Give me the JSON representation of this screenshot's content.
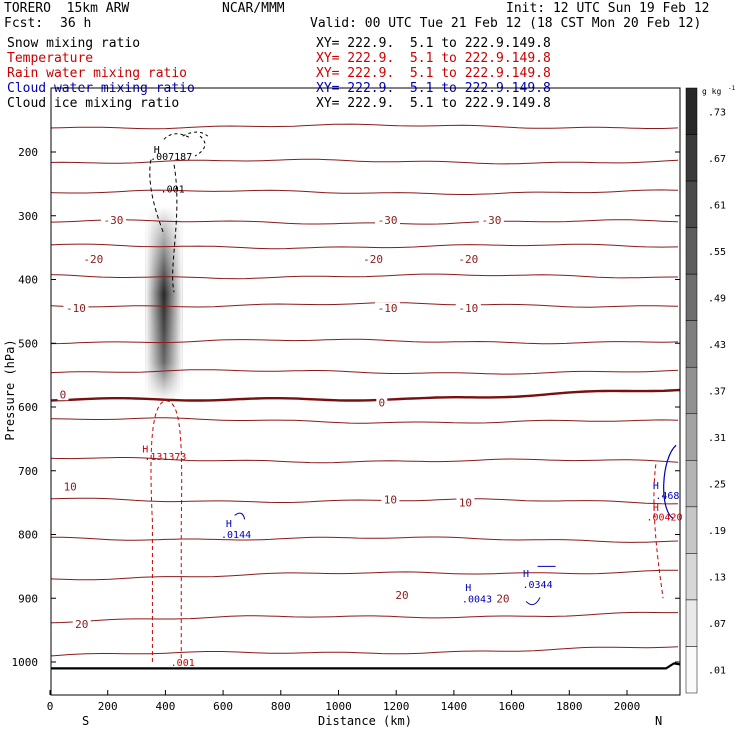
{
  "header": {
    "model": "TORERO  15km ARW",
    "org": "NCAR/MMM",
    "init": "Init: 12 UTC Sun 19 Feb 12",
    "fcst_label": "Fcst:",
    "fcst_value": "36 h",
    "valid": "Valid: 00 UTC Tue 21 Feb 12 (18 CST Mon 20 Feb 12)"
  },
  "fields": [
    {
      "name": "Snow mixing ratio",
      "xy": "XY= 222.9.  5.1 to 222.9.149.8",
      "color": "#000000"
    },
    {
      "name": "Temperature",
      "xy": "XY= 222.9.  5.1 to 222.9.149.8",
      "color": "#cc0000"
    },
    {
      "name": "Rain water mixing ratio",
      "xy": "XY= 222.9.  5.1 to 222.9.149.8",
      "color": "#cc0000"
    },
    {
      "name": "Cloud water mixing ratio",
      "xy": "XY= 222.9.  5.1 to 222.9.149.8",
      "color": "#0000bb"
    },
    {
      "name": "Cloud ice mixing ratio",
      "xy": "XY= 222.9.  5.1 to 222.9.149.8",
      "color": "#000000"
    }
  ],
  "chart_data": {
    "type": "cross-section",
    "xlabel": "Distance (km)",
    "ylabel": "Pressure (hPa)",
    "x_ticks": [
      0,
      200,
      400,
      600,
      800,
      1000,
      1200,
      1400,
      1600,
      1800,
      2000
    ],
    "y_ticks": [
      200,
      300,
      400,
      500,
      600,
      700,
      800,
      900,
      1000
    ],
    "xlim": [
      0,
      2180
    ],
    "ylim": [
      110,
      1045
    ],
    "left_end_label": "S",
    "right_end_label": "N",
    "colorbar": {
      "unit": "g kg",
      "unit_exp": "-1",
      "levels": [
        ".73",
        ".67",
        ".61",
        ".55",
        ".49",
        ".43",
        ".37",
        ".31",
        ".25",
        ".19",
        ".13",
        ".07",
        ".01"
      ]
    },
    "temperature_isotherm_labels": [
      {
        "label": "-30",
        "x": 220,
        "p": 307
      },
      {
        "label": "-30",
        "x": 1170,
        "p": 307
      },
      {
        "label": "-30",
        "x": 1530,
        "p": 307
      },
      {
        "label": "-20",
        "x": 150,
        "p": 368
      },
      {
        "label": "-20",
        "x": 1120,
        "p": 368
      },
      {
        "label": "-20",
        "x": 1450,
        "p": 368
      },
      {
        "label": "-10",
        "x": 90,
        "p": 445
      },
      {
        "label": "-10",
        "x": 1170,
        "p": 445
      },
      {
        "label": "-10",
        "x": 1450,
        "p": 445
      },
      {
        "label": "0",
        "x": 45,
        "p": 580
      },
      {
        "label": "0",
        "x": 1150,
        "p": 593
      },
      {
        "label": "10",
        "x": 70,
        "p": 725
      },
      {
        "label": "10",
        "x": 1180,
        "p": 745
      },
      {
        "label": "10",
        "x": 1440,
        "p": 750
      },
      {
        "label": "20",
        "x": 110,
        "p": 940
      },
      {
        "label": "20",
        "x": 1220,
        "p": 895
      },
      {
        "label": "20",
        "x": 1570,
        "p": 900
      }
    ],
    "annotations": [
      {
        "text": "H",
        "x": 370,
        "p": 195,
        "color": "#000000"
      },
      {
        "text": ".007187",
        "x": 420,
        "p": 206,
        "color": "#000000"
      },
      {
        "text": ".001",
        "x": 425,
        "p": 257,
        "color": "#000000"
      },
      {
        "text": "H",
        "x": 330,
        "p": 665,
        "color": "#cc0000"
      },
      {
        "text": ".131373",
        "x": 400,
        "p": 677,
        "color": "#cc0000"
      },
      {
        "text": "H",
        "x": 620,
        "p": 782,
        "color": "#0000bb"
      },
      {
        "text": ".0144",
        "x": 645,
        "p": 799,
        "color": "#0000bb"
      },
      {
        "text": "H",
        "x": 1450,
        "p": 882,
        "color": "#0000bb"
      },
      {
        "text": ".0043",
        "x": 1480,
        "p": 900,
        "color": "#0000bb"
      },
      {
        "text": "H",
        "x": 1650,
        "p": 860,
        "color": "#0000bb"
      },
      {
        "text": ".0344",
        "x": 1690,
        "p": 878,
        "color": "#0000bb"
      },
      {
        "text": "H",
        "x": 2100,
        "p": 722,
        "color": "#0000bb"
      },
      {
        "text": ".468",
        "x": 2140,
        "p": 738,
        "color": "#0000bb"
      },
      {
        "text": "H",
        "x": 2100,
        "p": 757,
        "color": "#cc0000"
      },
      {
        "text": ".00420",
        "x": 2130,
        "p": 772,
        "color": "#cc0000"
      },
      {
        "text": ".001",
        "x": 460,
        "p": 1000,
        "color": "#cc0000"
      }
    ]
  }
}
